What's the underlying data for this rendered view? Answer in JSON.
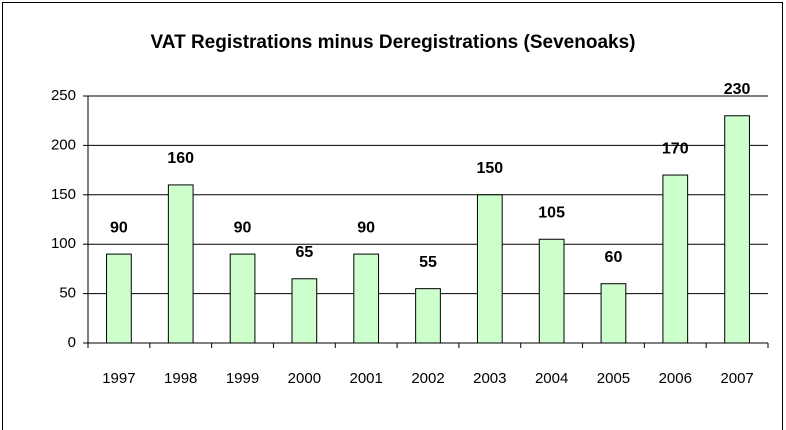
{
  "chart_data": {
    "type": "bar",
    "title": "VAT Registrations minus Deregistrations (Sevenoaks)",
    "categories": [
      "1997",
      "1998",
      "1999",
      "2000",
      "2001",
      "2002",
      "2003",
      "2004",
      "2005",
      "2006",
      "2007"
    ],
    "values": [
      90,
      160,
      90,
      65,
      90,
      55,
      150,
      105,
      60,
      170,
      230
    ],
    "color": "#ccffcc",
    "ylim": [
      0,
      250
    ],
    "yticks": [
      0,
      50,
      100,
      150,
      200,
      250
    ],
    "grid": true
  }
}
